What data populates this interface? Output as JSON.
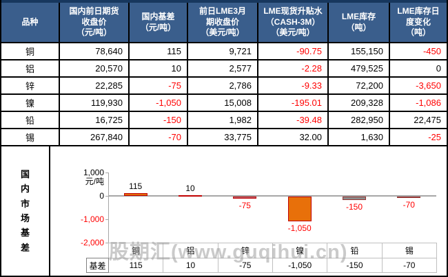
{
  "colors": {
    "header_bg": "#3A5E8C",
    "top_strip": "#17375E",
    "negative_text": "#FF0000",
    "axis_gray": "#A6A6A6",
    "chart_table_border": "#BFBFBF",
    "watermark_gray": "#969696"
  },
  "watermark": "股期汇(www.guqihui.cn)",
  "main_table": {
    "headers": [
      [
        "品种"
      ],
      [
        "国内前日期货",
        "收盘价",
        "（元/吨）"
      ],
      [
        "国内基差",
        "（元/吨）"
      ],
      [
        "前日LME3月",
        "期收盘价",
        "（美元/吨）"
      ],
      [
        "LME现货升贴水",
        "（CASH-3M）",
        "（美元/吨）"
      ],
      [
        "LME库存",
        "（吨）"
      ],
      [
        "LME库存日",
        "度变化",
        "（吨）"
      ]
    ],
    "rows": [
      {
        "metal": "铜",
        "values": [
          "78,640",
          "115",
          "9,721",
          "-90.75",
          "155,150",
          "-450"
        ]
      },
      {
        "metal": "铝",
        "values": [
          "20,570",
          "10",
          "2,577",
          "-2.28",
          "479,525",
          "0"
        ]
      },
      {
        "metal": "锌",
        "values": [
          "22,285",
          "-75",
          "2,786",
          "-9.33",
          "72,200",
          "-3,650"
        ]
      },
      {
        "metal": "镍",
        "values": [
          "119,930",
          "-1,050",
          "15,008",
          "-195.01",
          "209,328",
          "-1,086"
        ]
      },
      {
        "metal": "铅",
        "values": [
          "16,725",
          "-150",
          "1,982",
          "-39.48",
          "282,950",
          "22,475"
        ]
      },
      {
        "metal": "锡",
        "values": [
          "267,840",
          "-70",
          "33,775",
          "32.00",
          "1,630",
          "-25"
        ]
      }
    ]
  },
  "section": {
    "vertical_title": "国内市场基差"
  },
  "chart_data": {
    "type": "bar",
    "title": "国内市场基差",
    "ylabel": "元/吨",
    "categories": [
      "铜",
      "铝",
      "锌",
      "镍",
      "铅",
      "锡"
    ],
    "values": [
      115,
      10,
      -75,
      -1050,
      -150,
      -70
    ],
    "value_labels": [
      "115",
      "10",
      "-75",
      "-1,050",
      "-150",
      "-70"
    ],
    "data_row_label": "基差",
    "data_row_values": [
      "115",
      "10",
      "-75",
      "-1,050",
      "-150",
      "-70"
    ],
    "ylim": [
      -2000,
      1000
    ],
    "yticks": [
      {
        "value": 1000,
        "label": "1,000"
      },
      {
        "value": 0,
        "label": "0"
      },
      {
        "value": -1000,
        "label": "-1,000"
      },
      {
        "value": -2000,
        "label": "-2,000"
      }
    ],
    "grid": false,
    "legend": "none",
    "bar_styles": [
      {
        "fill": "#E36C09",
        "border": "#C00000"
      },
      {
        "fill": "#C00000",
        "border": "#C00000"
      },
      {
        "fill": "#BE7282",
        "border": "#C00000"
      },
      {
        "fill": "#E8700A",
        "border": "#C00000"
      },
      {
        "fill": "#8C8C8C",
        "border": "#963634"
      },
      {
        "fill": "#C49A6C",
        "border": "#963634"
      }
    ]
  }
}
